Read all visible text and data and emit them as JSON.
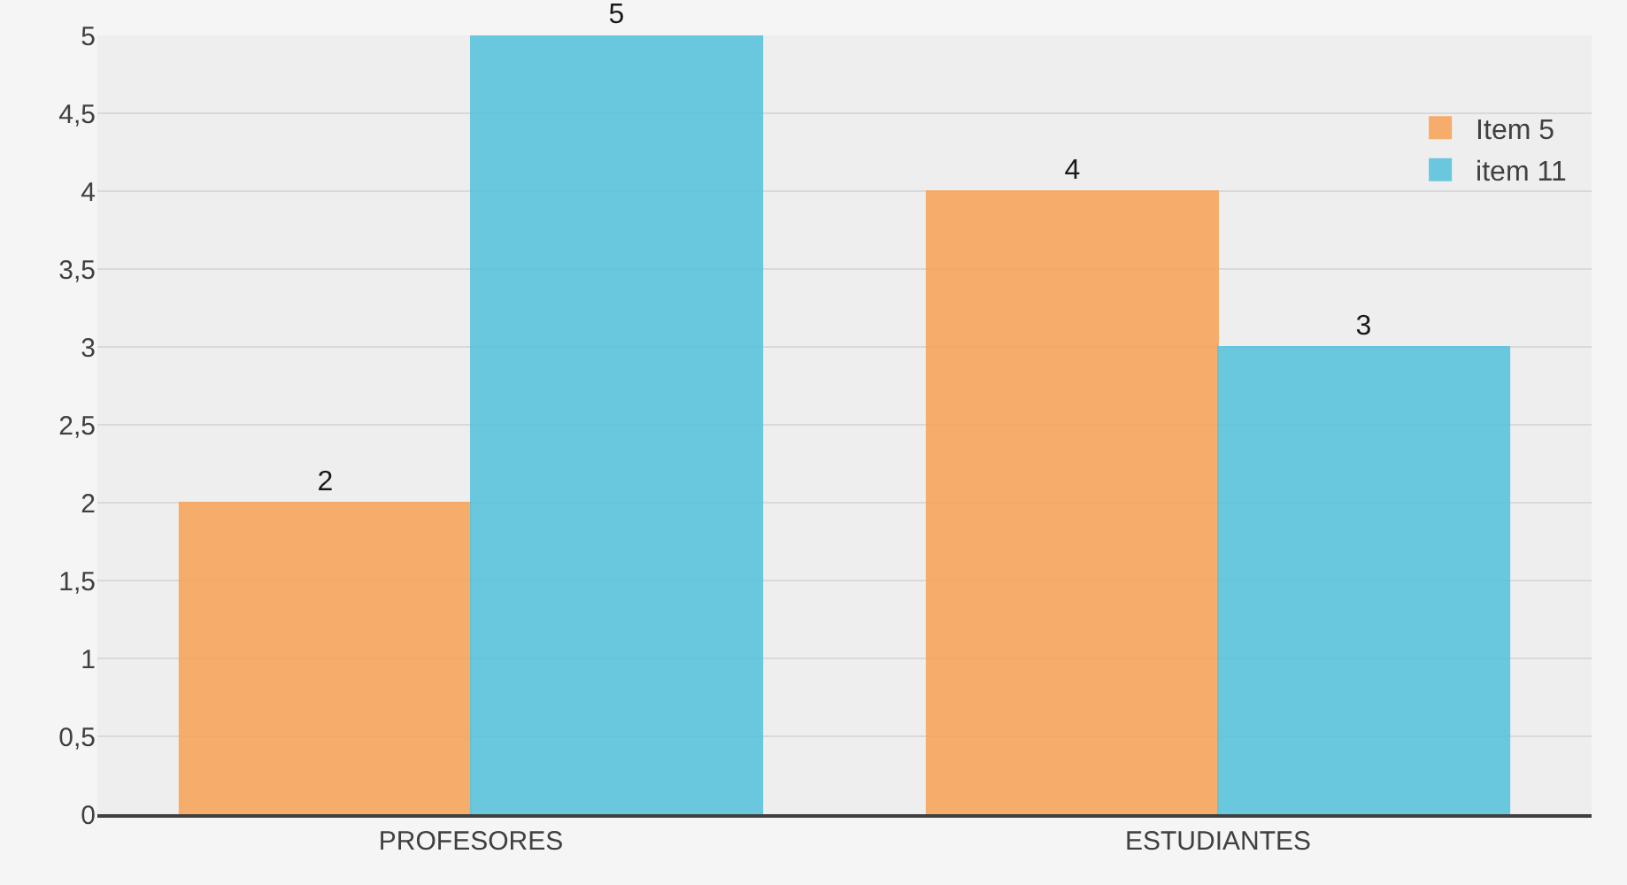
{
  "chart_data": {
    "type": "bar",
    "categories": [
      "PROFESORES",
      "ESTUDIANTES"
    ],
    "series": [
      {
        "name": "Item 5",
        "color": "#f7a55c",
        "values": [
          2,
          4
        ]
      },
      {
        "name": "item 11",
        "color": "#5bc3dc",
        "values": [
          5,
          3
        ]
      }
    ],
    "ylim": [
      0,
      5
    ],
    "yticks": [
      0,
      {
        "value": 0.5,
        "label": "0,5"
      },
      1,
      {
        "value": 1.5,
        "label": "1,5"
      },
      2,
      {
        "value": 2.5,
        "label": "2,5"
      },
      3,
      {
        "value": 3.5,
        "label": "3,5"
      },
      4,
      {
        "value": 4.5,
        "label": "4,5"
      },
      5
    ],
    "grid": "y",
    "legend": "top right",
    "data_labels": true
  }
}
